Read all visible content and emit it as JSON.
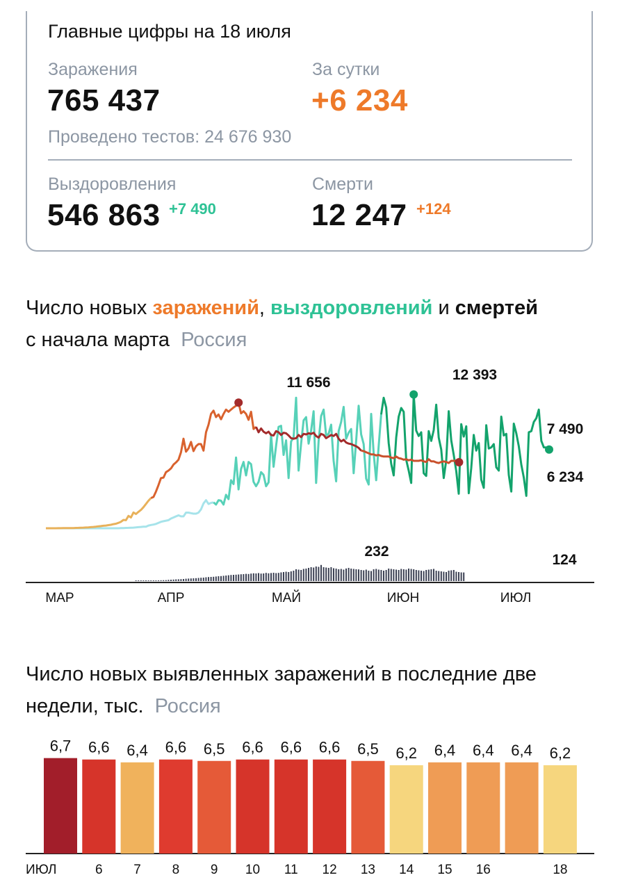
{
  "summary": {
    "title": "Главные цифры на 18 июля",
    "infections_label": "Заражения",
    "infections_value": "765 437",
    "day_label": "За сутки",
    "day_value": "+6 234",
    "tests_text": "Проведено тестов: 24 676 930",
    "recovered_label": "Выздоровления",
    "recovered_value": "546 863",
    "recovered_delta": "+7 490",
    "deaths_label": "Смерти",
    "deaths_value": "12 247",
    "deaths_delta": "+124",
    "colors": {
      "orange": "#ee7a2a",
      "green": "#2ec295",
      "gray": "#8c96a3"
    }
  },
  "chart1_heading": {
    "part1": "Число новых ",
    "infections_word": "заражений",
    "sep1": ", ",
    "recoveries_word": "выздоровлений",
    "sep2": " и ",
    "deaths_word": "смертей",
    "line2": "с начала марта",
    "region": "Россия"
  },
  "chart2_heading": {
    "line1": "Число новых выявленных заражений в последние две",
    "line2": "недели, тыс.",
    "region": "Россия"
  },
  "chart_data": [
    {
      "type": "line",
      "x_axis_labels": [
        "МАР",
        "АПР",
        "МАЙ",
        "ИЮН",
        "ИЮЛ"
      ],
      "x_start": "2020-03-01",
      "annotations": {
        "infections_peak": "11 656",
        "recoveries_peak": "12 393",
        "recoveries_last": "7 490",
        "infections_last": "6 234",
        "deaths_peak": "232",
        "deaths_last": "124"
      },
      "series": [
        {
          "name": "заражений",
          "colors": [
            "#e8b15a",
            "#d9622e",
            "#a32b2b",
            "#c9502c"
          ],
          "values": [
            0,
            0,
            0,
            0,
            2,
            5,
            8,
            10,
            11,
            15,
            18,
            20,
            30,
            40,
            50,
            60,
            70,
            80,
            100,
            120,
            150,
            180,
            200,
            230,
            250,
            290,
            320,
            380,
            420,
            500,
            600,
            770,
            750,
            1150,
            1000,
            1460,
            1320,
            1520,
            1700,
            1950,
            2250,
            2550,
            2800,
            2900,
            3400,
            4000,
            4650,
            4700,
            5200,
            5350,
            5550,
            5900,
            6100,
            6350,
            7050,
            8300,
            7100,
            7400,
            8000,
            7150,
            7600,
            7800,
            7800,
            7200,
            8900,
            9600,
            10600,
            10900,
            10300,
            10550,
            10100,
            10600,
            11000,
            10800,
            11000,
            11200,
            11350,
            11650,
            10650,
            10850,
            10600,
            10050,
            10800,
            9200,
            9400,
            8900,
            9250,
            8950,
            8800,
            8950,
            8650,
            8600,
            9000,
            8900,
            8650,
            8850,
            8800,
            8600,
            8350,
            8300,
            8350,
            8650,
            8450,
            8750,
            8700,
            8800,
            8750,
            8850,
            8550,
            8400,
            8750,
            8650,
            8350,
            8500,
            8650,
            8550,
            8750,
            8300,
            8050,
            8200,
            7950,
            7850,
            7800,
            7700,
            7600,
            7450,
            7200,
            7150,
            7050,
            6950,
            6850,
            6850,
            6750,
            6800,
            6700,
            6650,
            6650,
            6650,
            6550,
            6500,
            6650,
            6500,
            6450,
            6350,
            6400,
            6300,
            6350,
            6250,
            6250,
            6250,
            6300,
            6200,
            6150,
            6400,
            6200,
            6200,
            6100,
            6050,
            6150,
            6200,
            6150,
            6050,
            6250,
            6250,
            6250
          ]
        },
        {
          "name": "выздоровлений",
          "colors": [
            "#a6e3ea",
            "#57d1b8",
            "#13a36c"
          ],
          "values": [
            0,
            0,
            0,
            0,
            0,
            0,
            0,
            0,
            0,
            0,
            0,
            0,
            0,
            0,
            0,
            0,
            0,
            0,
            0,
            0,
            0,
            0,
            0,
            0,
            0,
            0,
            0,
            0,
            0,
            0,
            10,
            20,
            30,
            40,
            50,
            60,
            80,
            100,
            120,
            150,
            150,
            250,
            300,
            340,
            400,
            500,
            600,
            650,
            700,
            750,
            900,
            1000,
            1100,
            1200,
            1100,
            1100,
            1450,
            1450,
            1400,
            1350,
            1350,
            1450,
            1750,
            2300,
            2600,
            2250,
            2350,
            2400,
            2200,
            2600,
            2550,
            2200,
            3100,
            2700,
            4450,
            4100,
            6550,
            3600,
            5500,
            6150,
            4900,
            6150,
            5950,
            4300,
            3900,
            4300,
            5200,
            4950,
            3900,
            4250,
            8700,
            5700,
            7650,
            9400,
            9500,
            6800,
            8150,
            4650,
            8050,
            8400,
            12100,
            5350,
            7850,
            10000,
            10300,
            7850,
            9050,
            10850,
            4200,
            8100,
            10400,
            11000,
            8600,
            8750,
            9600,
            6250,
            4350,
            9000,
            9850,
            11250,
            8300,
            8850,
            9200,
            5100,
            8100,
            11350,
            8700,
            7800,
            4600,
            4050,
            10600,
            6950,
            4450,
            7600,
            10550,
            12100,
            11200,
            7900,
            6000,
            4900,
            8400,
            10350,
            11150,
            10800,
            6350,
            5350,
            4200,
            12400,
            9050,
            8550,
            8900,
            5100,
            4850,
            9000,
            8100,
            9100,
            11450,
            8400,
            7300,
            4650,
            6300,
            10850,
            8150,
            6800,
            5300,
            3200,
            9650,
            8500,
            9450,
            3250,
            5600,
            8650,
            7200,
            7900,
            4500,
            3750,
            9550,
            7400,
            7500,
            7800,
            5650,
            5350,
            10350,
            8600,
            8750,
            4950,
            3400,
            9700,
            8800,
            7600,
            5900,
            4700,
            3000,
            8900,
            9000,
            9850,
            10200,
            11000,
            8100,
            7500,
            7490
          ]
        },
        {
          "name": "смертей",
          "colors": [
            "#3a3f52"
          ],
          "values": [
            0,
            0,
            0,
            0,
            0,
            0,
            0,
            0,
            0,
            0,
            0,
            0,
            0,
            0,
            0,
            0,
            0,
            0,
            0,
            0,
            0,
            0,
            0,
            0,
            0,
            0,
            0,
            0,
            0,
            0,
            0,
            0,
            0,
            0,
            0,
            0,
            2,
            3,
            4,
            5,
            3,
            4,
            5,
            6,
            8,
            10,
            12,
            13,
            14,
            18,
            20,
            22,
            25,
            26,
            28,
            30,
            34,
            36,
            38,
            40,
            42,
            45,
            48,
            50,
            55,
            58,
            60,
            62,
            66,
            70,
            72,
            76,
            80,
            84,
            88,
            90,
            92,
            95,
            98,
            100,
            104,
            102,
            108,
            112,
            110,
            115,
            108,
            110,
            118,
            112,
            116,
            120,
            115,
            118,
            125,
            130,
            135,
            130,
            140,
            150,
            170,
            165,
            160,
            175,
            180,
            190,
            200,
            195,
            210,
            205,
            232,
            200,
            195,
            190,
            200,
            185,
            180,
            170,
            175,
            165,
            181,
            190,
            180,
            175,
            170,
            168,
            160,
            155,
            165,
            150,
            145,
            170,
            175,
            165,
            160,
            150,
            160,
            180,
            175,
            170,
            165,
            160,
            175,
            170,
            165,
            180,
            175,
            170,
            160,
            155,
            150,
            145,
            160,
            165,
            170,
            175,
            150,
            145,
            140,
            135,
            130,
            150,
            155,
            160,
            135,
            130,
            125,
            124
          ]
        }
      ]
    },
    {
      "type": "bar",
      "categories": [
        "ИЮЛ",
        "6",
        "7",
        "8",
        "9",
        "10",
        "11",
        "12",
        "13",
        "14",
        "15",
        "16",
        "",
        "18"
      ],
      "values": [
        6.7,
        6.6,
        6.4,
        6.6,
        6.5,
        6.6,
        6.6,
        6.6,
        6.5,
        6.2,
        6.4,
        6.4,
        6.4,
        6.2
      ],
      "value_labels": [
        "6,7",
        "6,6",
        "6,4",
        "6,6",
        "6,5",
        "6,6",
        "6,6",
        "6,6",
        "6,5",
        "6,2",
        "6,4",
        "6,4",
        "6,4",
        "6,2"
      ],
      "bar_colors": [
        "#a21e2a",
        "#d6342a",
        "#f0b25c",
        "#df3b2f",
        "#e55a38",
        "#d6342a",
        "#d6342a",
        "#d6342a",
        "#e55a38",
        "#f6d67e",
        "#ef9c55",
        "#ef9c55",
        "#ef9c55",
        "#f6d67e"
      ],
      "label_colors": [
        "#111111",
        "#111111",
        "#111111",
        "#111111",
        "#111111",
        "#111111",
        "#d03a2a",
        "#d03a2a",
        "#111111",
        "#111111",
        "#111111",
        "#111111",
        "#111111",
        "#d03a2a"
      ]
    }
  ]
}
